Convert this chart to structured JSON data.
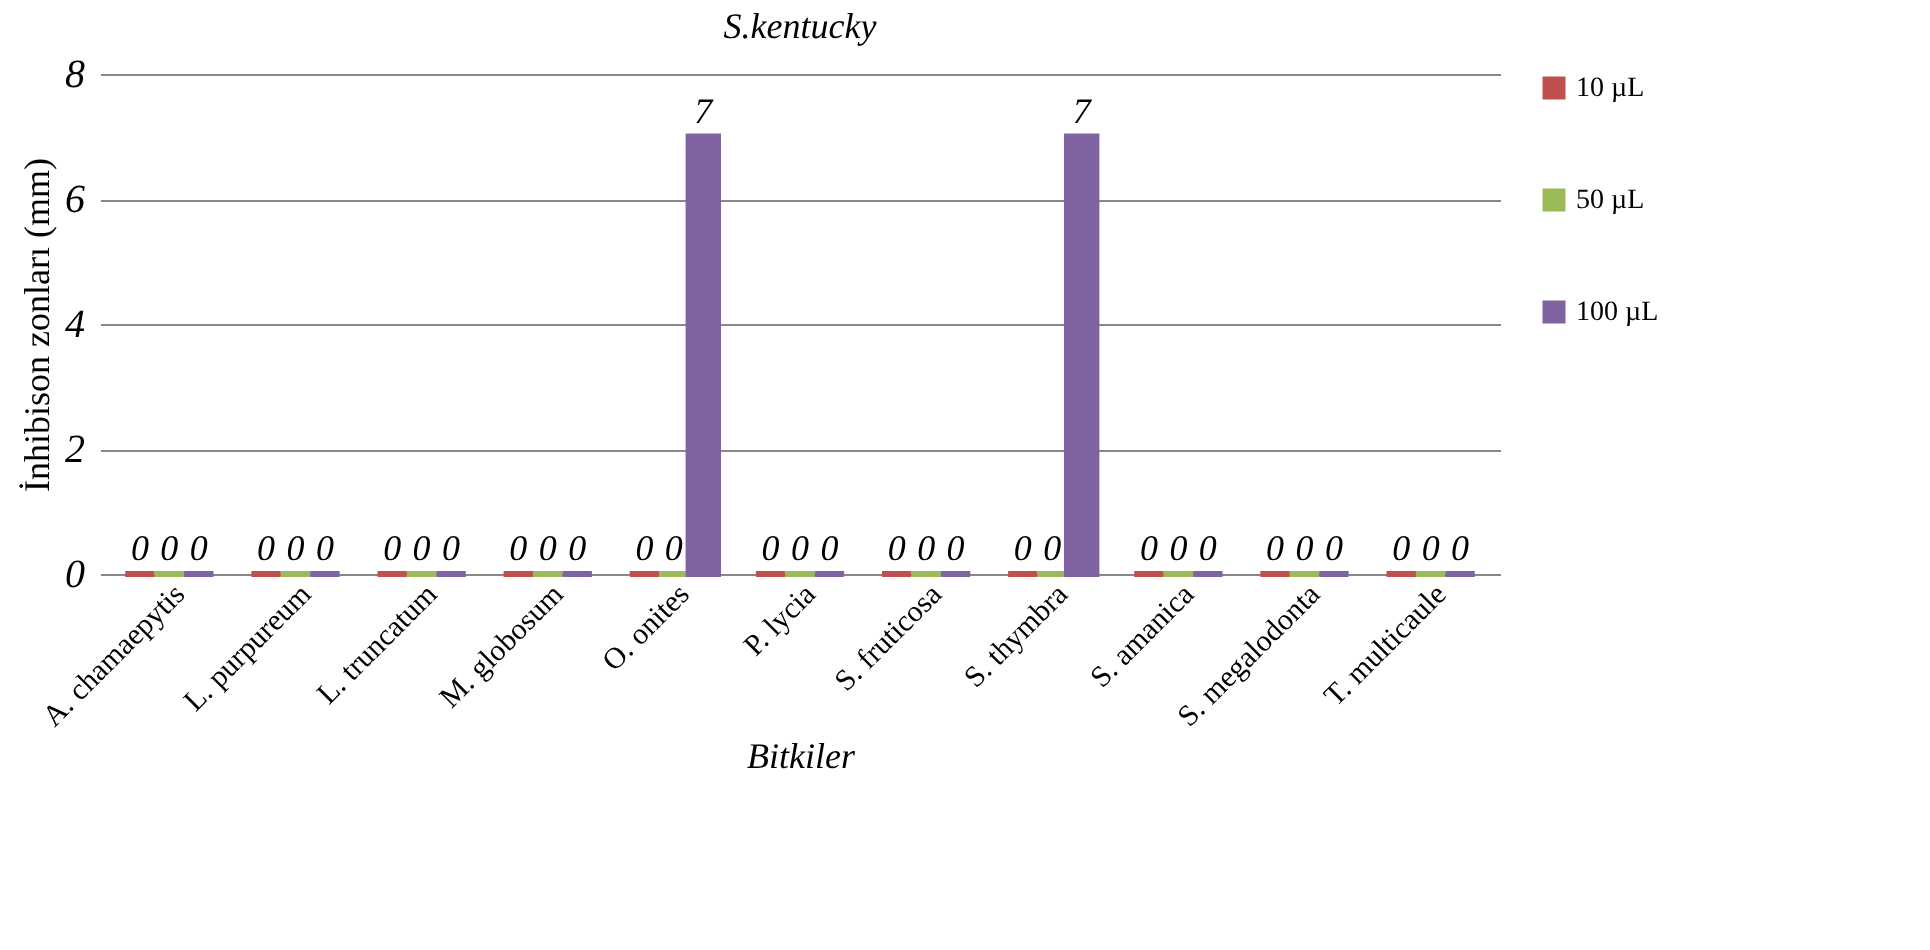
{
  "chart_data": {
    "type": "bar",
    "title": "S.kentucky",
    "xlabel": "Bitkiler",
    "ylabel": "İnhibison zonları (mm)",
    "categories": [
      "A. chamaepytis",
      "L. purpureum",
      "L. truncatum",
      "M. globosum",
      "O. onites",
      "P. lycia",
      "S. fruticosa",
      "S. thymbra",
      "S. amanica",
      "S. megalodonta",
      "T. multicaule"
    ],
    "series": [
      {
        "name": "10 µL",
        "color": "#c0504d",
        "values": [
          0,
          0,
          0,
          0,
          0,
          0,
          0,
          0,
          0,
          0,
          0
        ]
      },
      {
        "name": "50 µL",
        "color": "#9bbb59",
        "values": [
          0,
          0,
          0,
          0,
          0,
          0,
          0,
          0,
          0,
          0,
          0
        ]
      },
      {
        "name": "100 µL",
        "color": "#8064a2",
        "values": [
          0,
          0,
          0,
          0,
          7,
          0,
          0,
          7,
          0,
          0,
          0
        ]
      }
    ],
    "ylim": [
      0,
      8
    ],
    "yticks": [
      0,
      2,
      4,
      6,
      8
    ],
    "grid": "y",
    "legend": "right",
    "data_labels": true
  }
}
